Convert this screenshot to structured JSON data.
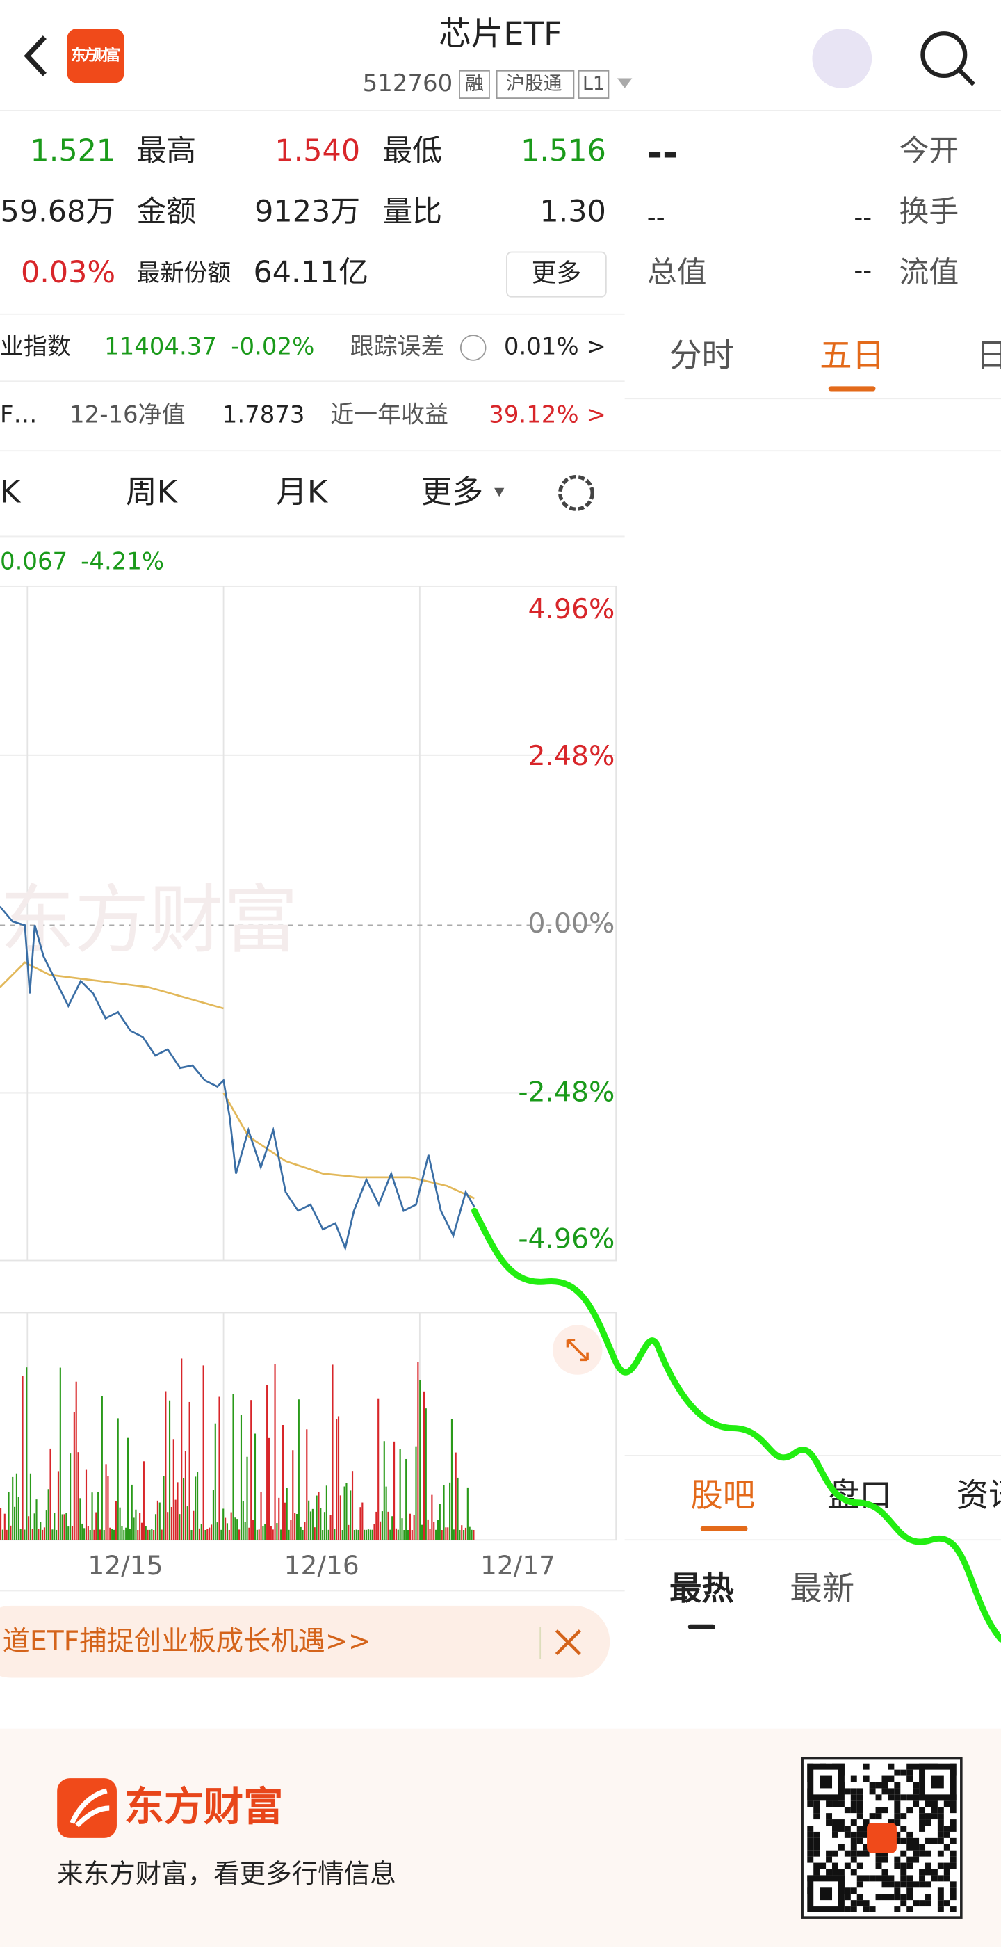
{
  "header": {
    "logo": "东方财富",
    "title": "芯片ETF",
    "code": "512760",
    "tags": [
      "融",
      "沪股通",
      "L1"
    ]
  },
  "quote": {
    "rows": [
      [
        "1.521",
        "最高",
        "1.540",
        "最低",
        "1.516"
      ],
      [
        "59.68万",
        "金额",
        "9123万",
        "量比",
        "1.30"
      ],
      [
        "0.03%",
        "最新份额",
        "64.11亿",
        "更多"
      ]
    ],
    "right": [
      [
        "--",
        "今开"
      ],
      [
        "--",
        "--",
        "换手"
      ],
      [
        "总值",
        "--",
        "流值"
      ]
    ]
  },
  "index_row": [
    "业指数",
    "11404.37",
    "-0.02%",
    "跟踪误差",
    "0.01% >"
  ],
  "nav_row": [
    "F…",
    "12-16净值",
    "1.7873",
    "近一年收益",
    "39.12% >"
  ],
  "chart_tabs": [
    "K",
    "周K",
    "月K",
    "更多"
  ],
  "time_tabs": [
    "分时",
    "五日",
    "日"
  ],
  "info": [
    "0.067",
    "-4.21%"
  ],
  "axis_labels": [
    "4.96%",
    "2.48%",
    "0.00%",
    "-2.48%",
    "-4.96%"
  ],
  "dates": [
    "12/15",
    "12/16",
    "12/17"
  ],
  "banner": "道ETF捕捉创业板成长机遇>>",
  "side_tabs": [
    "股吧",
    "盘口",
    "资讯"
  ],
  "sub_tabs": [
    "最热",
    "最新"
  ],
  "footer": {
    "brand": "东方财富",
    "slogan": "来东方财富，看更多行情信息"
  }
}
